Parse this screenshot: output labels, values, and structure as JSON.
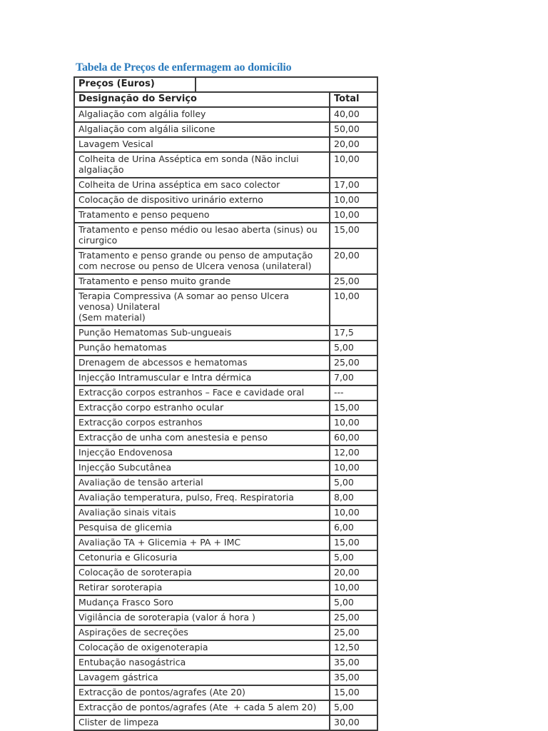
{
  "title": "Tabela de Preços de enfermagem ao domicílio",
  "title_color": "#2b7bbd",
  "table": {
    "top_header": "Preços (Euros)",
    "top_header_empty": "",
    "columns": {
      "service": "Designação do Serviço",
      "total": "Total"
    },
    "rows": [
      {
        "service": "Algaliação com algália folley",
        "total": "40,00"
      },
      {
        "service": "Algaliação com algália silicone",
        "total": "50,00"
      },
      {
        "service": "Lavagem Vesical",
        "total": "20,00"
      },
      {
        "service": "Colheita de Urina Asséptica em sonda (Não inclui algaliação",
        "total": "10,00"
      },
      {
        "service": "Colheita de Urina asséptica em saco colector",
        "total": "17,00"
      },
      {
        "service": "Colocação de dispositivo urinário externo",
        "total": "10,00"
      },
      {
        "service": "Tratamento e penso pequeno",
        "total": "10,00"
      },
      {
        "service": "Tratamento e penso médio ou lesao aberta (sinus) ou cirurgico",
        "total": "15,00"
      },
      {
        "service": "Tratamento e penso grande ou penso de amputação com necrose ou penso de Ulcera venosa (unilateral)",
        "total": "20,00"
      },
      {
        "service": "Tratamento e penso muito grande",
        "total": "25,00"
      },
      {
        "service": "Terapia Compressiva (A somar ao penso Ulcera venosa) Unilateral\n(Sem material)",
        "total": "10,00"
      },
      {
        "service": "Punção Hematomas Sub-ungueais",
        "total": "17,5"
      },
      {
        "service": "Punção hematomas",
        "total": "5,00"
      },
      {
        "service": "Drenagem de abcessos e hematomas",
        "total": "25,00"
      },
      {
        "service": "Injecção Intramuscular e Intra dérmica",
        "total": "7,00"
      },
      {
        "service": "Extracção corpos estranhos – Face e cavidade oral",
        "total": "---"
      },
      {
        "service": "Extracção corpo estranho ocular",
        "total": "15,00"
      },
      {
        "service": "Extracção corpos estranhos",
        "total": "10,00"
      },
      {
        "service": "Extracção de unha com anestesia e penso",
        "total": "60,00"
      },
      {
        "service": "Injecção Endovenosa",
        "total": "12,00"
      },
      {
        "service": "Injecção Subcutânea",
        "total": "10,00"
      },
      {
        "service": "Avaliação de tensão arterial",
        "total": "5,00"
      },
      {
        "service": "Avaliação temperatura, pulso, Freq. Respiratoria",
        "total": "8,00"
      },
      {
        "service": "Avaliação sinais vitais",
        "total": "10,00"
      },
      {
        "service": "Pesquisa de glicemia",
        "total": "6,00"
      },
      {
        "service": "Avaliação TA + Glicemia + PA + IMC",
        "total": "15,00"
      },
      {
        "service": "Cetonuria e Glicosuria",
        "total": "5,00"
      },
      {
        "service": "Colocação de soroterapia",
        "total": "20,00"
      },
      {
        "service": "Retirar soroterapia",
        "total": "10,00"
      },
      {
        "service": "Mudança Frasco Soro",
        "total": "5,00"
      },
      {
        "service": "Vigilância de soroterapia (valor á hora )",
        "total": "25,00"
      },
      {
        "service": "Aspirações de secreções",
        "total": "25,00"
      },
      {
        "service": "Colocação de oxigenoterapia",
        "total": "12,50"
      },
      {
        "service": "Entubação nasogástrica",
        "total": "35,00"
      },
      {
        "service": "Lavagem gástrica",
        "total": "35,00"
      },
      {
        "service": "Extracção de pontos/agrafes (Ate 20)",
        "total": "15,00"
      },
      {
        "service": "Extracção de pontos/agrafes (Ate  + cada 5 alem 20)",
        "total": "5,00"
      },
      {
        "service": "Clister de limpeza",
        "total": "30,00"
      }
    ]
  }
}
